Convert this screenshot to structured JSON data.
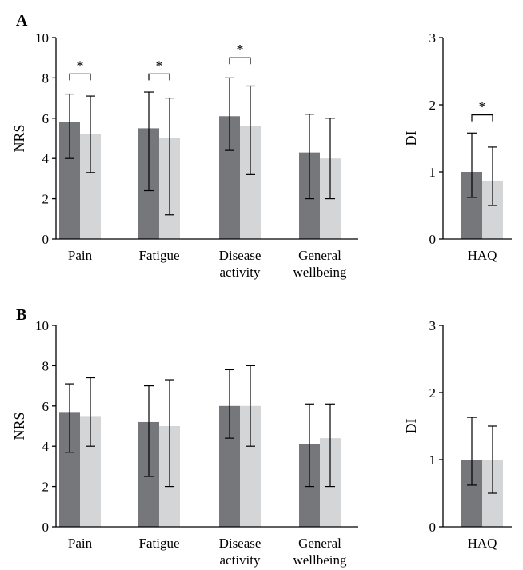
{
  "colors": {
    "series_dark": "#76777b",
    "series_light": "#d4d5d7"
  },
  "chart_data": [
    {
      "panel": "A",
      "type": "bar",
      "ylabel": "NRS",
      "ylim": [
        0,
        10
      ],
      "yticks": [
        "0",
        "2",
        "4",
        "6",
        "8",
        "10"
      ],
      "categories": [
        [
          "Pain"
        ],
        [
          "Fatigue"
        ],
        [
          "Disease",
          "activity"
        ],
        [
          "General",
          "wellbeing"
        ]
      ],
      "series": [
        {
          "values": [
            5.8,
            5.5,
            6.1,
            4.3
          ],
          "err_low": [
            4.0,
            2.4,
            4.4,
            2.0
          ],
          "err_high": [
            7.2,
            7.3,
            8.0,
            6.2
          ]
        },
        {
          "values": [
            5.2,
            5.0,
            5.6,
            4.0
          ],
          "err_low": [
            3.3,
            1.2,
            3.2,
            2.0
          ],
          "err_high": [
            7.1,
            7.0,
            7.6,
            6.0
          ]
        }
      ],
      "significance": [
        {
          "category": 0,
          "y": 8.2,
          "label": "*"
        },
        {
          "category": 1,
          "y": 8.2,
          "label": "*"
        },
        {
          "category": 2,
          "y": 9.0,
          "label": "*"
        }
      ]
    },
    {
      "panel": "",
      "type": "bar",
      "ylabel": "DI",
      "ylim": [
        0,
        3
      ],
      "yticks": [
        "0",
        "1",
        "2",
        "3"
      ],
      "categories": [
        [
          "HAQ"
        ]
      ],
      "series": [
        {
          "values": [
            1.0
          ],
          "err_low": [
            0.62
          ],
          "err_high": [
            1.58
          ]
        },
        {
          "values": [
            0.87
          ],
          "err_low": [
            0.5
          ],
          "err_high": [
            1.37
          ]
        }
      ],
      "significance": [
        {
          "category": 0,
          "y": 1.85,
          "label": "*"
        }
      ]
    },
    {
      "panel": "B",
      "type": "bar",
      "ylabel": "NRS",
      "ylim": [
        0,
        10
      ],
      "yticks": [
        "0",
        "2",
        "4",
        "6",
        "8",
        "10"
      ],
      "categories": [
        [
          "Pain"
        ],
        [
          "Fatigue"
        ],
        [
          "Disease",
          "activity"
        ],
        [
          "General",
          "wellbeing"
        ]
      ],
      "series": [
        {
          "values": [
            5.7,
            5.2,
            6.0,
            4.1
          ],
          "err_low": [
            3.7,
            2.5,
            4.4,
            2.0
          ],
          "err_high": [
            7.1,
            7.0,
            7.8,
            6.1
          ]
        },
        {
          "values": [
            5.5,
            5.0,
            6.0,
            4.4
          ],
          "err_low": [
            4.0,
            2.0,
            4.0,
            2.0
          ],
          "err_high": [
            7.4,
            7.3,
            8.0,
            6.1
          ]
        }
      ],
      "significance": []
    },
    {
      "panel": "",
      "type": "bar",
      "ylabel": "DI",
      "ylim": [
        0,
        3
      ],
      "yticks": [
        "0",
        "1",
        "2",
        "3"
      ],
      "categories": [
        [
          "HAQ"
        ]
      ],
      "series": [
        {
          "values": [
            1.0
          ],
          "err_low": [
            0.62
          ],
          "err_high": [
            1.63
          ]
        },
        {
          "values": [
            1.0
          ],
          "err_low": [
            0.5
          ],
          "err_high": [
            1.5
          ]
        }
      ],
      "significance": []
    }
  ]
}
